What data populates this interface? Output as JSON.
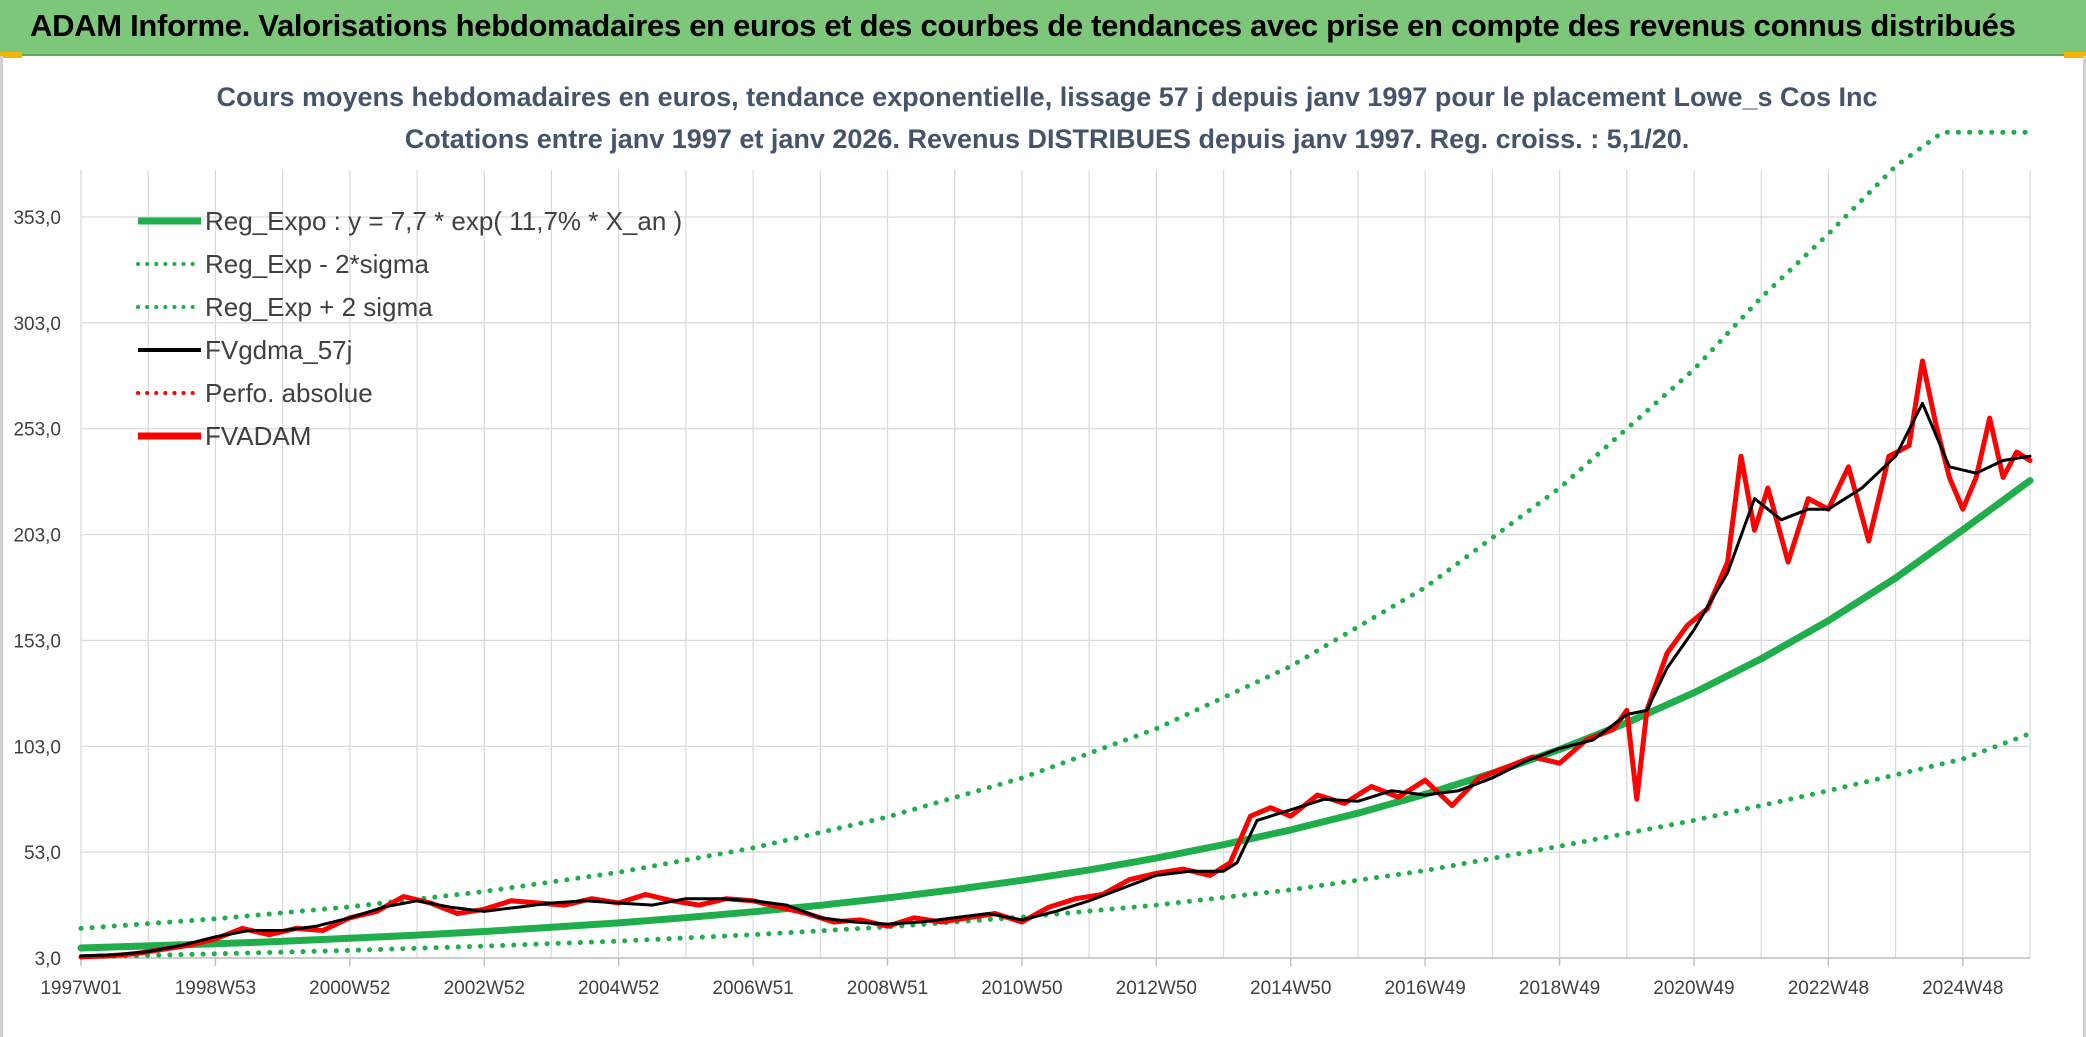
{
  "banner": {
    "title": "ADAM Informe. Valorisations hebdomadaires en euros et des courbes de tendances avec prise en compte des revenus connus distribués"
  },
  "colors": {
    "banner_bg": "#7dc77b",
    "trend_green": "#1fae4b",
    "adam_red": "#ff0000",
    "gdma_black": "#000000",
    "title_color": "#44546a",
    "grid": "#d9d9d9",
    "accent_corner": "#f2b600"
  },
  "chart_data": {
    "type": "line",
    "title": "Cours moyens hebdomadaires en euros, tendance exponentielle, lissage 57 j depuis janv 1997 pour le placement Lowe_s Cos Inc",
    "subtitle": "Cotations entre janv 1997 et janv 2026. Revenus DISTRIBUES depuis janv 1997. Reg. croiss. : 5,1/20.",
    "xlabel": "",
    "ylabel": "",
    "xlim": [
      1997.0,
      2026.0
    ],
    "ylim": [
      3.0,
      393.0
    ],
    "y_ticks": [
      3.0,
      53.0,
      103.0,
      153.0,
      203.0,
      253.0,
      303.0,
      353.0
    ],
    "y_tick_labels": [
      "3,0",
      "53,0",
      "103,0",
      "153,0",
      "203,0",
      "253,0",
      "303,0",
      "353,0"
    ],
    "x_ticks": [
      1997.0,
      1999.0,
      2001.0,
      2003.0,
      2005.0,
      2007.0,
      2009.0,
      2011.0,
      2013.0,
      2015.0,
      2017.0,
      2019.0,
      2021.0,
      2023.0,
      2025.0
    ],
    "x_tick_labels": [
      "1997W01",
      "1998W53",
      "2000W52",
      "2002W52",
      "2004W52",
      "2006W51",
      "2008W51",
      "2010W50",
      "2012W50",
      "2014W50",
      "2016W49",
      "2018W49",
      "2020W49",
      "2022W48",
      "2024W48"
    ],
    "grid": true,
    "legend": {
      "position": "top-left",
      "entries": [
        {
          "label": "Reg_Expo : y = 7,7 * exp( 11,7% *  X_an )",
          "color": "#1fae4b",
          "style": "solid"
        },
        {
          "label": "Reg_Exp - 2*sigma",
          "color": "#1fae4b",
          "style": "dotted"
        },
        {
          "label": "Reg_Exp + 2 sigma",
          "color": "#1fae4b",
          "style": "dotted"
        },
        {
          "label": "FVgdma_57j",
          "color": "#000000",
          "style": "solid-thin"
        },
        {
          "label": "Perfo. absolue",
          "color": "#ff0000",
          "style": "dotted"
        },
        {
          "label": "FVADAM",
          "color": "#ff0000",
          "style": "solid"
        }
      ]
    },
    "series": [
      {
        "name": "Reg_Expo",
        "style": "solid",
        "x": [
          1997,
          1998,
          1999,
          2000,
          2001,
          2002,
          2003,
          2004,
          2005,
          2006,
          2007,
          2008,
          2009,
          2010,
          2011,
          2012,
          2013,
          2014,
          2015,
          2016,
          2017,
          2018,
          2019,
          2020,
          2021,
          2022,
          2023,
          2024,
          2025,
          2026
        ],
        "values": [
          7.7,
          8.7,
          9.7,
          10.9,
          12.3,
          13.8,
          15.5,
          17.5,
          19.6,
          22.1,
          24.8,
          27.9,
          31.4,
          35.3,
          39.7,
          44.6,
          50.2,
          56.5,
          63.5,
          71.4,
          80.3,
          90.3,
          101.5,
          114.1,
          128.3,
          144.3,
          162.3,
          182.5,
          205.2,
          228.5
        ]
      },
      {
        "name": "Reg_Exp - 2*sigma",
        "style": "dotted",
        "x": [
          1997,
          1999,
          2001,
          2003,
          2005,
          2007,
          2009,
          2011,
          2013,
          2015,
          2017,
          2019,
          2021,
          2023,
          2025,
          2026
        ],
        "values": [
          3.5,
          5.0,
          6.6,
          8.6,
          11.0,
          14.0,
          17.7,
          22.3,
          28.0,
          35.2,
          44.3,
          55.8,
          68.0,
          82.0,
          97.0,
          109.0
        ]
      },
      {
        "name": "Reg_Exp + 2 sigma",
        "style": "dotted",
        "x": [
          1997,
          1999,
          2001,
          2003,
          2005,
          2007,
          2009,
          2011,
          2013,
          2015,
          2017,
          2019,
          2021,
          2022,
          2023,
          2024,
          2024.7,
          2026
        ],
        "values": [
          17.0,
          21.5,
          27.2,
          34.4,
          43.5,
          55.0,
          69.6,
          88.0,
          111.3,
          140.8,
          178.0,
          225.0,
          281.0,
          315.0,
          345.0,
          377.0,
          393.0,
          393.0
        ]
      },
      {
        "name": "FVgdma_57j",
        "style": "solid-thin",
        "x": [
          1997.0,
          1997.5,
          1998.0,
          1998.5,
          1999.0,
          1999.5,
          2000.0,
          2000.5,
          2001.0,
          2001.5,
          2002.0,
          2002.5,
          2003.0,
          2003.5,
          2004.0,
          2004.5,
          2005.0,
          2005.5,
          2006.0,
          2006.5,
          2007.0,
          2007.5,
          2008.0,
          2008.5,
          2009.0,
          2009.5,
          2010.0,
          2010.5,
          2011.0,
          2011.5,
          2012.0,
          2012.5,
          2013.0,
          2013.5,
          2014.0,
          2014.2,
          2014.5,
          2015.0,
          2015.5,
          2016.0,
          2016.5,
          2017.0,
          2017.5,
          2018.0,
          2018.5,
          2019.0,
          2019.5,
          2020.0,
          2020.3,
          2020.6,
          2021.0,
          2021.5,
          2021.9,
          2022.3,
          2022.7,
          2023.0,
          2023.5,
          2024.0,
          2024.4,
          2024.8,
          2025.2,
          2025.6,
          2026.0
        ],
        "values": [
          4.0,
          4.5,
          6.0,
          9.0,
          13.0,
          16.0,
          16.0,
          18.0,
          22.0,
          27.0,
          30.0,
          27.0,
          25.0,
          27.0,
          29.0,
          30.0,
          29.0,
          28.0,
          31.0,
          31.0,
          30.0,
          28.0,
          22.0,
          20.0,
          19.0,
          20.0,
          22.0,
          24.0,
          21.0,
          25.0,
          30.0,
          36.0,
          42.0,
          44.0,
          44.0,
          48.0,
          68.0,
          73.0,
          78.0,
          77.0,
          82.0,
          80.0,
          82.0,
          88.0,
          96.0,
          102.0,
          106.0,
          118.0,
          120.0,
          140.0,
          158.0,
          185.0,
          220.0,
          210.0,
          215.0,
          215.0,
          225.0,
          240.0,
          265.0,
          235.0,
          232.0,
          238.0,
          240.0
        ]
      },
      {
        "name": "FVADAM",
        "style": "solid",
        "x": [
          1997.0,
          1997.4,
          1997.8,
          1998.2,
          1998.6,
          1999.0,
          1999.4,
          1999.8,
          2000.2,
          2000.6,
          2001.0,
          2001.4,
          2001.8,
          2002.2,
          2002.6,
          2003.0,
          2003.4,
          2003.8,
          2004.2,
          2004.6,
          2005.0,
          2005.4,
          2005.8,
          2006.2,
          2006.6,
          2007.0,
          2007.4,
          2007.8,
          2008.2,
          2008.6,
          2009.0,
          2009.4,
          2009.8,
          2010.2,
          2010.6,
          2011.0,
          2011.4,
          2011.8,
          2012.2,
          2012.6,
          2013.0,
          2013.4,
          2013.8,
          2014.1,
          2014.4,
          2014.7,
          2015.0,
          2015.4,
          2015.8,
          2016.2,
          2016.6,
          2017.0,
          2017.4,
          2017.8,
          2018.2,
          2018.6,
          2019.0,
          2019.4,
          2019.8,
          2020.0,
          2020.15,
          2020.3,
          2020.6,
          2020.9,
          2021.2,
          2021.5,
          2021.7,
          2021.9,
          2022.1,
          2022.4,
          2022.7,
          2023.0,
          2023.3,
          2023.6,
          2023.9,
          2024.2,
          2024.4,
          2024.6,
          2024.8,
          2025.0,
          2025.2,
          2025.4,
          2025.6,
          2025.8,
          2026.0
        ],
        "values": [
          3.5,
          4.0,
          5.0,
          7.0,
          9.0,
          12.0,
          17.0,
          14.0,
          17.0,
          16.0,
          22.0,
          25.0,
          32.0,
          29.0,
          24.0,
          26.0,
          30.0,
          29.0,
          28.0,
          31.0,
          29.0,
          33.0,
          30.0,
          28.0,
          31.0,
          30.0,
          27.0,
          24.0,
          20.0,
          21.0,
          18.0,
          22.0,
          20.0,
          22.0,
          24.0,
          20.0,
          27.0,
          31.0,
          33.0,
          40.0,
          43.0,
          45.0,
          42.0,
          48.0,
          70.0,
          74.0,
          70.0,
          80.0,
          76.0,
          84.0,
          79.0,
          87.0,
          75.0,
          88.0,
          93.0,
          98.0,
          95.0,
          106.0,
          111.0,
          120.0,
          78.0,
          120.0,
          147.0,
          160.0,
          168.0,
          190.0,
          240.0,
          205.0,
          225.0,
          190.0,
          220.0,
          215.0,
          235.0,
          200.0,
          240.0,
          245.0,
          285.0,
          255.0,
          230.0,
          215.0,
          230.0,
          258.0,
          230.0,
          242.0,
          238.0
        ]
      }
    ]
  }
}
